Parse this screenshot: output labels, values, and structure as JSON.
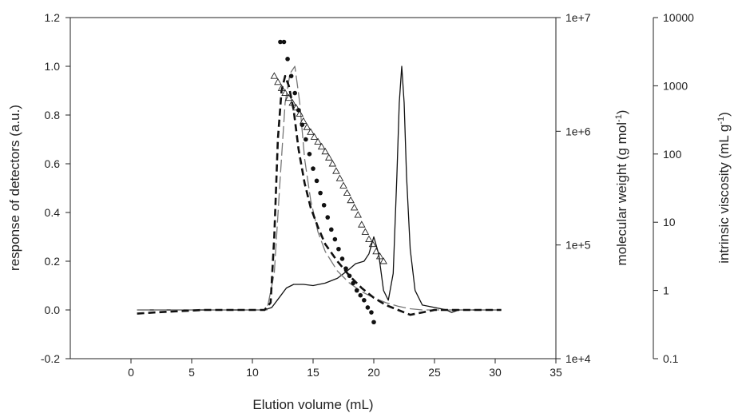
{
  "chart_data": {
    "type": "line",
    "xlabel": "Elution volume (mL)",
    "xlim": [
      -5,
      35
    ],
    "xticks": [
      "5",
      "10",
      "15",
      "20",
      "25",
      "30",
      "35"
    ],
    "xtick_values": [
      5,
      10,
      15,
      20,
      25,
      30,
      35
    ],
    "xtick_origin_label": "0",
    "left_axis": {
      "label": "response of detectors (a.u.)",
      "ylim": [
        -0.2,
        1.2
      ],
      "ticks": [
        "-0.2",
        "0.0",
        "0.2",
        "0.4",
        "0.6",
        "0.8",
        "1.0",
        "1.2"
      ],
      "tick_values": [
        -0.2,
        0.0,
        0.2,
        0.4,
        0.6,
        0.8,
        1.0,
        1.2
      ]
    },
    "mw_axis": {
      "label_main": "molecular weight (g mol",
      "label_sup": "-1",
      "label_end": ")",
      "scale": "log",
      "ylim": [
        10000,
        10000000
      ],
      "ticks": [
        "1e+4",
        "1e+5",
        "1e+6",
        "1e+7"
      ],
      "tick_values": [
        10000,
        100000,
        1000000,
        10000000
      ]
    },
    "iv_axis": {
      "label_main": "intrinsic viscosity (mL g",
      "label_sup": "-1",
      "label_end": ")",
      "scale": "log",
      "ylim": [
        0.1,
        10000
      ],
      "ticks": [
        "0.1",
        "1",
        "10",
        "100",
        "1000",
        "10000"
      ],
      "tick_values": [
        0.1,
        1,
        10,
        100,
        1000,
        10000
      ]
    },
    "series": [
      {
        "style": "solid thin black",
        "axis": "left",
        "x": [
          0.5,
          11.0,
          11.6,
          12.2,
          12.8,
          13.4,
          14.2,
          15.0,
          16.0,
          17.0,
          17.8,
          18.5,
          19.2,
          19.6,
          20.0,
          20.4,
          20.8,
          21.2,
          21.6,
          21.9,
          22.1,
          22.3,
          22.5,
          22.7,
          23.0,
          23.4,
          24.0,
          25.0,
          26.0,
          26.4,
          27.0,
          28.0,
          30.5
        ],
        "y": [
          0.0,
          0.0,
          0.01,
          0.05,
          0.09,
          0.105,
          0.105,
          0.1,
          0.11,
          0.13,
          0.16,
          0.19,
          0.2,
          0.23,
          0.3,
          0.23,
          0.08,
          0.04,
          0.15,
          0.55,
          0.85,
          1.0,
          0.85,
          0.55,
          0.25,
          0.08,
          0.02,
          0.01,
          0.0,
          -0.01,
          0.0,
          0.0,
          0.0
        ]
      },
      {
        "style": "long dash thin gray",
        "axis": "left",
        "x": [
          0.5,
          11.2,
          11.8,
          12.3,
          12.7,
          13.1,
          13.5,
          13.9,
          14.3,
          14.8,
          15.4,
          16.0,
          17.0,
          18.0,
          19.0,
          20.0,
          21.0,
          22.0,
          23.0,
          24.0,
          30.5
        ],
        "y": [
          0.0,
          0.0,
          0.15,
          0.55,
          0.85,
          0.97,
          1.0,
          0.85,
          0.62,
          0.45,
          0.32,
          0.24,
          0.16,
          0.11,
          0.075,
          0.05,
          0.03,
          0.015,
          0.005,
          0.0,
          0.0
        ]
      },
      {
        "style": "heavy dash black",
        "axis": "left",
        "x": [
          0.5,
          2.0,
          4.0,
          6.0,
          8.0,
          10.0,
          11.0,
          11.5,
          11.8,
          12.1,
          12.4,
          12.7,
          13.0,
          13.4,
          13.8,
          14.3,
          14.8,
          15.4,
          16.0,
          17.0,
          18.0,
          19.0,
          20.0,
          21.0,
          22.0,
          23.0,
          24.0,
          25.0,
          27.0,
          30.5
        ],
        "y": [
          -0.015,
          -0.01,
          -0.005,
          0.0,
          0.0,
          0.0,
          0.0,
          0.03,
          0.3,
          0.7,
          0.9,
          0.96,
          0.92,
          0.82,
          0.66,
          0.52,
          0.42,
          0.34,
          0.27,
          0.2,
          0.14,
          0.09,
          0.05,
          0.02,
          0.0,
          -0.02,
          -0.01,
          0.0,
          0.0,
          0.0
        ]
      },
      {
        "style": "open triangle markers",
        "axis": "left",
        "x": [
          11.8,
          12.1,
          12.4,
          12.7,
          13.0,
          13.3,
          13.6,
          13.9,
          14.2,
          14.5,
          14.8,
          15.1,
          15.4,
          15.7,
          16.0,
          16.3,
          16.6,
          16.9,
          17.2,
          17.5,
          17.8,
          18.1,
          18.4,
          18.7,
          19.0,
          19.3,
          19.6,
          19.9,
          20.2,
          20.5,
          20.8
        ],
        "y": [
          0.96,
          0.935,
          0.91,
          0.89,
          0.87,
          0.85,
          0.83,
          0.805,
          0.775,
          0.75,
          0.73,
          0.71,
          0.69,
          0.67,
          0.65,
          0.625,
          0.6,
          0.57,
          0.54,
          0.51,
          0.48,
          0.45,
          0.42,
          0.39,
          0.35,
          0.32,
          0.29,
          0.27,
          0.24,
          0.22,
          0.2
        ]
      },
      {
        "style": "filled circle markers",
        "axis": "left",
        "x": [
          12.3,
          12.6,
          12.9,
          13.2,
          13.5,
          13.8,
          14.1,
          14.4,
          14.7,
          15.0,
          15.3,
          15.6,
          15.9,
          16.2,
          16.5,
          16.8,
          17.1,
          17.4,
          17.7,
          18.0,
          18.3,
          18.6,
          18.9,
          19.2,
          19.5,
          19.8,
          20.0
        ],
        "y": [
          1.1,
          1.1,
          1.03,
          0.96,
          0.89,
          0.82,
          0.76,
          0.7,
          0.64,
          0.58,
          0.53,
          0.48,
          0.43,
          0.38,
          0.33,
          0.29,
          0.25,
          0.21,
          0.17,
          0.14,
          0.11,
          0.08,
          0.06,
          0.04,
          0.01,
          -0.01,
          -0.05
        ]
      }
    ]
  }
}
